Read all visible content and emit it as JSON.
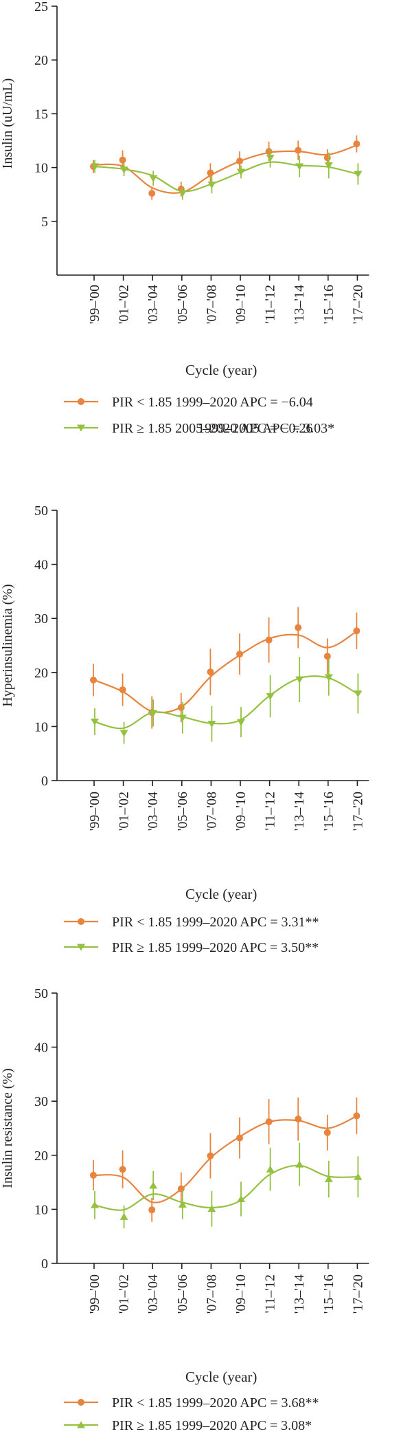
{
  "colors": {
    "pir_low": "#e8843e",
    "pir_high": "#94c140",
    "axis": "#231f20"
  },
  "markers": {
    "pir_low": "circle",
    "pir_high_insulin": "triangle-down",
    "pir_high_hyperinsulinemia": "triangle-down",
    "pir_high_insulin_resistance": "triangle-up"
  },
  "chart_data": [
    {
      "type": "line",
      "ylabel": "Insulin (uU/mL)",
      "xlabel": "Cycle (year)",
      "categories": [
        "'99–'00",
        "'01–'02",
        "'03–'04",
        "'05–'06",
        "'07–'08",
        "'09–'10",
        "'11–'12",
        "'13–'14",
        "'15–'16",
        "'17–'20"
      ],
      "ylim": [
        0,
        25
      ],
      "yticks": [
        "5",
        "10",
        "15",
        "20",
        "25"
      ],
      "series": [
        {
          "name": "PIR < 1.85",
          "values": [
            10.1,
            10.7,
            7.6,
            8.0,
            9.5,
            10.6,
            11.5,
            11.6,
            10.9,
            12.2
          ],
          "err_low": [
            0.6,
            0.9,
            0.6,
            0.7,
            0.9,
            0.9,
            0.9,
            0.9,
            0.8,
            0.8
          ],
          "err_high": [
            0.6,
            0.9,
            0.6,
            0.7,
            0.9,
            0.9,
            0.9,
            0.9,
            0.8,
            0.8
          ],
          "fit": [
            10.25,
            10.1,
            8.1,
            7.7,
            9.3,
            10.6,
            11.4,
            11.5,
            11.2,
            12.1
          ]
        },
        {
          "name": "PIR ≥ 1.85",
          "values": [
            10.1,
            9.8,
            9.0,
            7.6,
            8.4,
            9.6,
            10.9,
            10.1,
            10.2,
            9.4
          ],
          "err_low": [
            0.6,
            0.6,
            0.7,
            0.6,
            0.8,
            0.6,
            0.9,
            1.0,
            1.2,
            1.0
          ],
          "err_high": [
            0.6,
            0.6,
            0.7,
            0.6,
            0.8,
            0.6,
            0.9,
            1.0,
            1.2,
            1.0
          ],
          "fit": [
            10.1,
            9.85,
            9.25,
            7.8,
            8.45,
            9.55,
            10.5,
            10.2,
            10.05,
            9.4
          ]
        }
      ],
      "legend": [
        {
          "marker": "PIR < 1.85",
          "text": "PIR < 1.85 1999–2020 APC = −6.04",
          "continuation": "1999–2005 APC = 3.03*"
        },
        {
          "marker": "PIR ≥ 1.85",
          "text": "PIR ≥ 1.85 2005–2020 APC = −0.26"
        }
      ]
    },
    {
      "type": "line",
      "ylabel": "Hyperinsulinemia (%)",
      "xlabel": "Cycle (year)",
      "categories": [
        "'99–'00",
        "'01–'02",
        "'03–'04",
        "'05–'06",
        "'07–'08",
        "'09–'10",
        "'11–'12",
        "'13–'14",
        "'15–'16",
        "'17–'20"
      ],
      "ylim": [
        0,
        50
      ],
      "yticks": [
        "0",
        "10",
        "20",
        "30",
        "40",
        "50"
      ],
      "series": [
        {
          "name": "PIR < 1.85",
          "values": [
            18.6,
            16.8,
            12.6,
            13.5,
            20.1,
            23.4,
            26.0,
            28.3,
            23.0,
            27.7
          ],
          "err_low": [
            3.0,
            3.0,
            3.0,
            2.7,
            4.3,
            3.8,
            4.2,
            3.8,
            3.3,
            3.4
          ],
          "err_high": [
            3.0,
            3.0,
            3.0,
            2.7,
            4.3,
            3.8,
            4.2,
            3.8,
            3.3,
            3.4
          ],
          "fit": [
            18.6,
            16.4,
            12.8,
            13.7,
            19.3,
            23.3,
            26.3,
            26.9,
            24.6,
            27.7
          ]
        },
        {
          "name": "PIR ≥ 1.85",
          "values": [
            10.9,
            8.8,
            12.5,
            11.6,
            10.5,
            10.8,
            15.6,
            18.7,
            19.1,
            16.1
          ],
          "err_low": [
            2.5,
            2.0,
            2.5,
            2.9,
            3.3,
            2.8,
            3.9,
            4.2,
            3.4,
            3.7
          ],
          "err_high": [
            2.5,
            2.0,
            2.5,
            2.9,
            3.3,
            2.8,
            3.9,
            4.2,
            3.4,
            3.7
          ],
          "fit": [
            10.9,
            9.7,
            12.6,
            11.8,
            10.6,
            11.2,
            15.7,
            18.9,
            19.0,
            16.1
          ]
        }
      ],
      "legend": [
        {
          "marker": "PIR < 1.85",
          "text": "PIR < 1.85 1999–2020 APC = 3.31**"
        },
        {
          "marker": "PIR ≥ 1.85",
          "text": "PIR ≥ 1.85 1999–2020 APC = 3.50**"
        }
      ]
    },
    {
      "type": "line",
      "ylabel": "Insulin resistance (%)",
      "xlabel": "Cycle (year)",
      "categories": [
        "'99–'00",
        "'01–'02",
        "'03–'04",
        "'05–'06",
        "'07–'08",
        "'09–'10",
        "'11–'12",
        "'13–'14",
        "'15–'16",
        "'17–'20"
      ],
      "ylim": [
        0,
        50
      ],
      "yticks": [
        "0",
        "10",
        "20",
        "30",
        "40",
        "50"
      ],
      "series": [
        {
          "name": "PIR < 1.85",
          "values": [
            16.3,
            17.4,
            9.9,
            13.8,
            19.9,
            23.2,
            26.2,
            26.7,
            24.2,
            27.3
          ],
          "err_low": [
            2.8,
            3.5,
            2.2,
            3.0,
            4.2,
            3.8,
            4.2,
            4.0,
            3.3,
            3.4
          ],
          "err_high": [
            2.8,
            3.5,
            2.2,
            3.0,
            4.2,
            3.8,
            4.2,
            4.0,
            3.3,
            3.4
          ],
          "fit": [
            16.3,
            15.9,
            11.3,
            13.8,
            19.6,
            23.5,
            26.2,
            26.4,
            25.0,
            27.3
          ]
        },
        {
          "name": "PIR ≥ 1.85",
          "values": [
            10.8,
            8.6,
            14.4,
            10.9,
            10.1,
            11.9,
            17.4,
            18.3,
            15.6,
            16.0
          ],
          "err_low": [
            2.6,
            2.1,
            2.7,
            2.7,
            3.3,
            3.2,
            4.0,
            4.0,
            3.4,
            3.8
          ],
          "err_high": [
            2.6,
            2.1,
            2.7,
            2.7,
            3.3,
            3.2,
            4.0,
            4.0,
            3.4,
            3.8
          ],
          "fit": [
            10.8,
            9.9,
            12.8,
            11.3,
            10.3,
            11.6,
            16.4,
            18.1,
            16.1,
            16.0
          ]
        }
      ],
      "legend": [
        {
          "marker": "PIR < 1.85",
          "text": "PIR < 1.85 1999–2020 APC = 3.68**"
        },
        {
          "marker": "PIR ≥ 1.85",
          "text": "PIR ≥ 1.85 1999–2020 APC = 3.08*"
        }
      ]
    }
  ]
}
